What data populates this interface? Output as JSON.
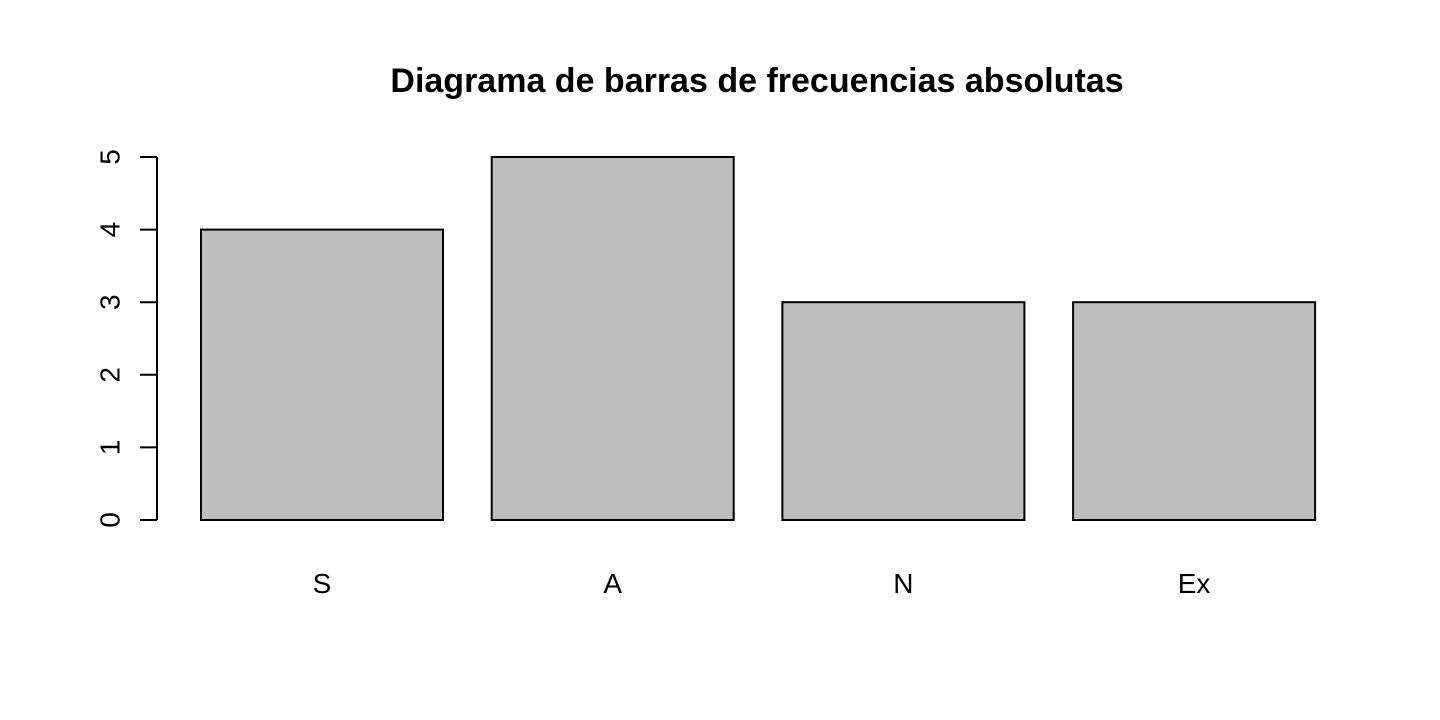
{
  "chart_data": {
    "type": "bar",
    "title": "Diagrama de barras de frecuencias absolutas",
    "xlabel": "",
    "ylabel": "",
    "categories": [
      "S",
      "A",
      "N",
      "Ex"
    ],
    "values": [
      4,
      5,
      3,
      3
    ],
    "ylim": [
      0,
      5
    ],
    "yticks": [
      0,
      1,
      2,
      3,
      4,
      5
    ],
    "grid": false,
    "legend": "none",
    "bar_color": "#bebebe",
    "border_color": "#000000"
  }
}
